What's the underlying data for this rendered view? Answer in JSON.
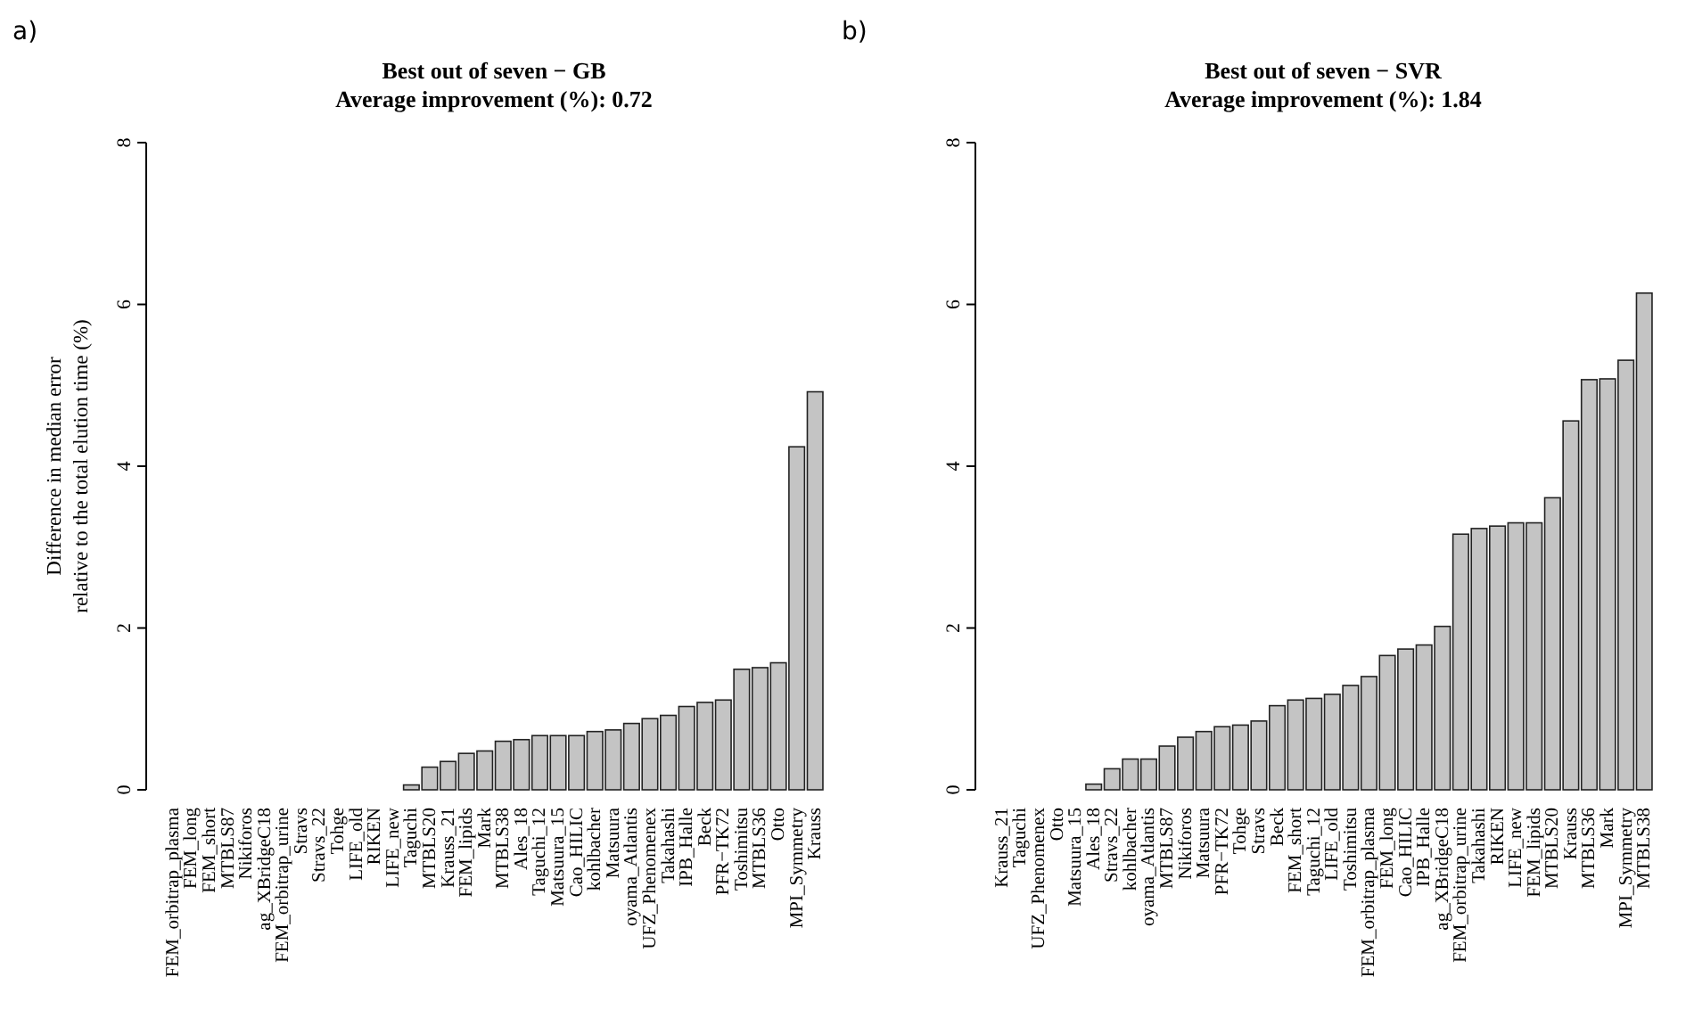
{
  "chart_data": [
    {
      "type": "bar",
      "title": "Best out of seven − GB",
      "subtitle": "Average improvement (%): 0.72",
      "ylabel": "Difference in median error\nrelative to the total elution time  (%)",
      "annotations": [
        "a)"
      ],
      "categories": [
        "FEM_orbitrap_plasma",
        "FEM_long",
        "FEM_short",
        "MTBLS87",
        "Nikiforos",
        "ag_XBridgeC18",
        "FEM_orbitrap_urine",
        "Stravs",
        "Stravs_22",
        "Tohge",
        "LIFE_old",
        "RIKEN",
        "LIFE_new",
        "Taguchi",
        "MTBLS20",
        "Krauss_21",
        "FEM_lipids",
        "Mark",
        "MTBLS38",
        "Ales_18",
        "Taguchi_12",
        "Matsuura_15",
        "Cao_HILIC",
        "kohlbacher",
        "Matsuura",
        "oyama_Atlantis",
        "UFZ_Phenomenex",
        "Takahashi",
        "IPB_Halle",
        "Beck",
        "PFR−TK72",
        "Toshimitsu",
        "MTBLS36",
        "Otto",
        "MPI_Symmetry",
        "Krauss"
      ],
      "values": [
        0,
        0,
        0,
        0,
        0,
        0,
        0,
        0,
        0,
        0,
        0,
        0,
        0,
        0.06,
        0.28,
        0.35,
        0.45,
        0.48,
        0.6,
        0.62,
        0.67,
        0.67,
        0.67,
        0.72,
        0.74,
        0.82,
        0.88,
        0.92,
        1.03,
        1.08,
        1.11,
        1.49,
        1.51,
        1.57,
        4.24,
        4.92
      ],
      "color": "#c4c4c4",
      "ylim": [
        0,
        8
      ],
      "yticks": [
        0,
        2,
        4,
        6,
        8
      ],
      "grid": false
    },
    {
      "type": "bar",
      "title": "Best out of seven − SVR",
      "subtitle": "Average improvement (%): 1.84",
      "annotations": [
        "b)"
      ],
      "categories": [
        "Krauss_21",
        "Taguchi",
        "UFZ_Phenomenex",
        "Otto",
        "Matsuura_15",
        "Ales_18",
        "Stravs_22",
        "kohlbacher",
        "oyama_Atlantis",
        "MTBLS87",
        "Nikiforos",
        "Matsuura",
        "PFR−TK72",
        "Tohge",
        "Stravs",
        "Beck",
        "FEM_short",
        "Taguchi_12",
        "LIFE_old",
        "Toshimitsu",
        "FEM_orbitrap_plasma",
        "FEM_long",
        "Cao_HILIC",
        "IPB_Halle",
        "ag_XBridgeC18",
        "FEM_orbitrap_urine",
        "Takahashi",
        "RIKEN",
        "LIFE_new",
        "FEM_lipids",
        "MTBLS20",
        "Krauss",
        "MTBLS36",
        "Mark",
        "MPI_Symmetry",
        "MTBLS38"
      ],
      "values": [
        0,
        0,
        0,
        0,
        0,
        0.07,
        0.26,
        0.38,
        0.38,
        0.54,
        0.65,
        0.72,
        0.78,
        0.8,
        0.85,
        1.04,
        1.11,
        1.13,
        1.18,
        1.29,
        1.4,
        1.66,
        1.74,
        1.79,
        2.02,
        3.16,
        3.23,
        3.26,
        3.3,
        3.3,
        3.61,
        4.56,
        5.07,
        5.08,
        5.31,
        6.14
      ],
      "color": "#c4c4c4",
      "ylim": [
        0,
        8
      ],
      "yticks": [
        0,
        2,
        4,
        6,
        8
      ],
      "grid": false
    }
  ]
}
